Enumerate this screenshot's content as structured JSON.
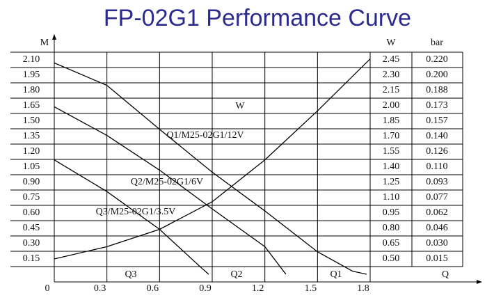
{
  "chart_data": {
    "type": "line",
    "title": "FP-02G1 Performance Curve",
    "y_label": "M",
    "y2_label": "W",
    "y3_label": "bar",
    "x_label": "Q",
    "annotations": [
      "W",
      "Q3",
      "Q2",
      "Q1"
    ],
    "xlim": [
      0,
      1.8
    ],
    "xticks": [
      0,
      0.3,
      0.6,
      0.9,
      1.2,
      1.5,
      1.8
    ],
    "ylim": [
      -0.075,
      2.175
    ],
    "yticks": [
      {
        "value": 2.1,
        "label": "2.10"
      },
      1.95,
      {
        "value": 1.8,
        "label": "1.80"
      },
      1.65,
      {
        "value": 1.5,
        "label": "1.50"
      },
      1.35,
      {
        "value": 1.2,
        "label": "1.20"
      },
      1.05,
      {
        "value": 0.9,
        "label": "0.90"
      },
      0.75,
      {
        "value": 0.6,
        "label": "0.60"
      },
      0.45,
      {
        "value": 0.3,
        "label": "0.30"
      },
      0.15
    ],
    "y2lim": [
      0.275,
      2.525
    ],
    "y2ticks": [
      2.45,
      {
        "value": 2.3,
        "label": "2.30"
      },
      2.15,
      {
        "value": 2,
        "label": "2.00"
      },
      1.85,
      {
        "value": 1.7,
        "label": "1.70"
      },
      1.55,
      {
        "value": 1.4,
        "label": "1.40"
      },
      1.25,
      {
        "value": 1.1,
        "label": "1.10"
      },
      0.95,
      {
        "value": 0.8,
        "label": "0.80"
      },
      0.65,
      {
        "value": 0.5,
        "label": "0.50"
      }
    ],
    "y3ticks": [
      {
        "value": 0.22,
        "label": "0.220"
      },
      {
        "value": 0.2,
        "label": "0.200"
      },
      0.188,
      0.173,
      0.157,
      {
        "value": 0.14,
        "label": "0.140"
      },
      0.126,
      {
        "value": 0.11,
        "label": "0.110"
      },
      0.093,
      0.077,
      0.062,
      0.046,
      {
        "value": 0.03,
        "label": "0.030"
      },
      0.015
    ],
    "series": [
      {
        "name": "Q1/M25-02G1/12V",
        "color": "#000000",
        "x": [
          0,
          0.3,
          0.6,
          0.9,
          1.2,
          1.5,
          1.7,
          1.78
        ],
        "values": [
          2.07,
          1.85,
          1.42,
          1.0,
          0.62,
          0.22,
          0.03,
          0
        ]
      },
      {
        "name": "Q2/M25-02G1/6V",
        "color": "#000000",
        "x": [
          0,
          0.3,
          0.6,
          0.9,
          1.2,
          1.32
        ],
        "values": [
          1.64,
          1.36,
          1.02,
          0.64,
          0.27,
          0
        ]
      },
      {
        "name": "Q3/M25-02G1/3.5V",
        "color": "#000000",
        "x": [
          0,
          0.3,
          0.6,
          0.84,
          0.88
        ],
        "values": [
          1.12,
          0.81,
          0.44,
          0.06,
          0
        ]
      },
      {
        "name": "W",
        "color": "#000000",
        "axis": "y2",
        "x": [
          0,
          0.3,
          0.6,
          0.9,
          1.2,
          1.5,
          1.8
        ],
        "values": [
          0.5,
          0.62,
          0.79,
          1.06,
          1.47,
          1.95,
          2.46
        ]
      }
    ]
  }
}
